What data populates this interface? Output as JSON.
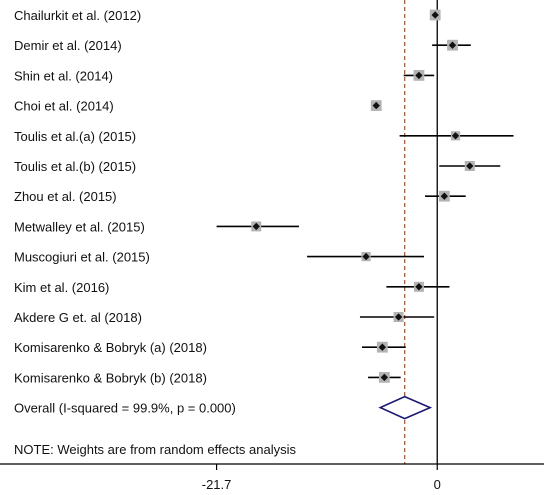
{
  "chart_data": {
    "type": "forest",
    "xlim": [
      -43,
      10.5
    ],
    "ticks": [
      {
        "value": -21.7,
        "label": "-21.7"
      },
      {
        "value": 0,
        "label": "0"
      }
    ],
    "null_line": 0,
    "pooled_line": -3.2,
    "studies": [
      {
        "label": "Chailurkit et al. (2012)",
        "est": -0.2,
        "lo": -0.6,
        "hi": 0.3,
        "weight": 0.6
      },
      {
        "label": "Demir et al. (2014)",
        "est": 1.5,
        "lo": -0.5,
        "hi": 3.3,
        "weight": 0.6
      },
      {
        "label": "Shin et al. (2014)",
        "est": -1.8,
        "lo": -3.3,
        "hi": -0.3,
        "weight": 0.6
      },
      {
        "label": "Choi et al. (2014)",
        "est": -6.0,
        "lo": -6.2,
        "hi": -5.8,
        "weight": 0.6
      },
      {
        "label": "Toulis et al.(a) (2015)",
        "est": 1.8,
        "lo": -3.7,
        "hi": 7.5,
        "weight": 0.4
      },
      {
        "label": "Toulis et al.(b) (2015)",
        "est": 3.2,
        "lo": 0.2,
        "hi": 6.2,
        "weight": 0.5
      },
      {
        "label": "Zhou et al. (2015)",
        "est": 0.7,
        "lo": -1.2,
        "hi": 2.8,
        "weight": 0.6
      },
      {
        "label": "Metwalley et al. (2015)",
        "est": -17.8,
        "lo": -21.7,
        "hi": -13.6,
        "weight": 0.5
      },
      {
        "label": "Muscogiuri et al. (2015)",
        "est": -7.0,
        "lo": -12.8,
        "hi": -1.3,
        "weight": 0.4
      },
      {
        "label": "Kim et al. (2016)",
        "est": -1.8,
        "lo": -5.0,
        "hi": 1.2,
        "weight": 0.5
      },
      {
        "label": "Akdere G et. al (2018)",
        "est": -3.8,
        "lo": -7.6,
        "hi": -0.3,
        "weight": 0.5
      },
      {
        "label": "Komisarenko & Bobryk (a) (2018)",
        "est": -5.4,
        "lo": -7.4,
        "hi": -3.1,
        "weight": 0.6
      },
      {
        "label": "Komisarenko & Bobryk (b) (2018)",
        "est": -5.2,
        "lo": -6.8,
        "hi": -3.6,
        "weight": 0.6
      }
    ],
    "overall": {
      "label": "Overall  (I-squared = 99.9%, p = 0.000)",
      "est": -3.2,
      "lo": -5.6,
      "hi": -0.7
    },
    "note": "NOTE: Weights are from random effects analysis",
    "colors": {
      "line": "#000000",
      "box": "#b3b3b3",
      "point": "#111111",
      "pooled_line": "#a0522d",
      "diamond": "#1a1a6e",
      "axis": "#000000"
    }
  }
}
